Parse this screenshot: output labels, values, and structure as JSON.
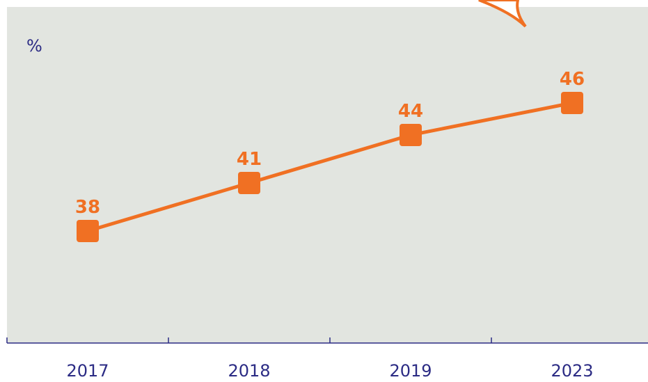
{
  "chart_data": {
    "type": "line",
    "y_label": "%",
    "categories": [
      "2017",
      "2018",
      "2019",
      "2023"
    ],
    "values": [
      38,
      41,
      44,
      46
    ],
    "color": "#f07023",
    "ylim": [
      31,
      52
    ]
  }
}
